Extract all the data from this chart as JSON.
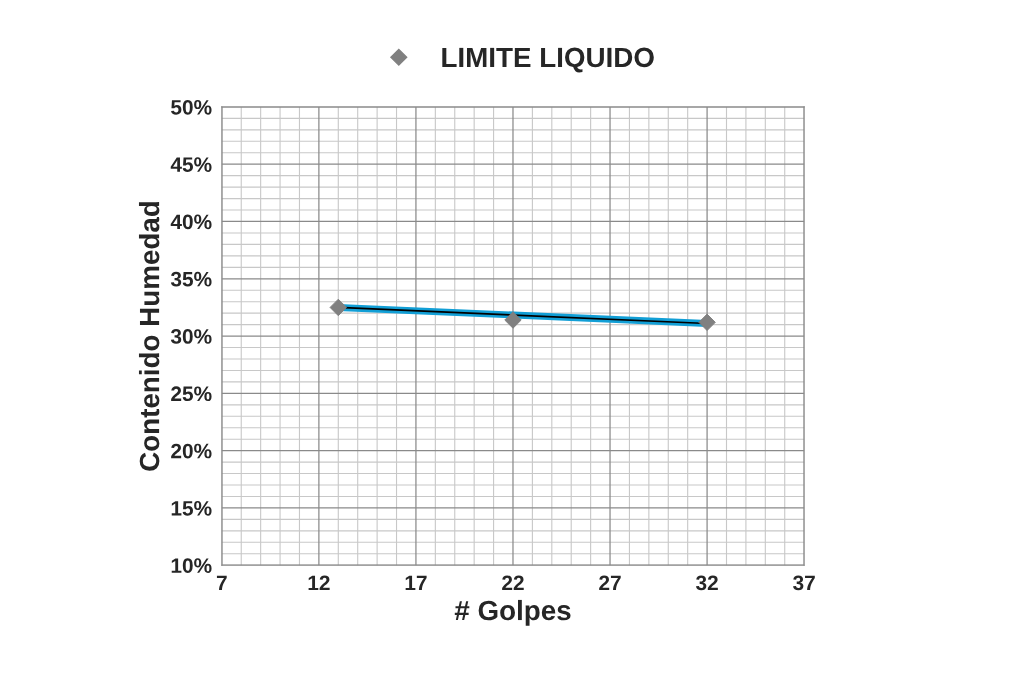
{
  "chart_data": {
    "type": "scatter",
    "xlabel": "# Golpes",
    "ylabel": "Contenido Humedad",
    "xlim": [
      7,
      37
    ],
    "xticks": [
      7,
      12,
      17,
      22,
      27,
      32,
      37
    ],
    "ylim": [
      10,
      50
    ],
    "yticks": [
      {
        "value": 10,
        "label": "10%"
      },
      {
        "value": 15,
        "label": "15%"
      },
      {
        "value": 20,
        "label": "20%"
      },
      {
        "value": 25,
        "label": "25%"
      },
      {
        "value": 30,
        "label": "30%"
      },
      {
        "value": 35,
        "label": "35%"
      },
      {
        "value": 40,
        "label": "40%"
      },
      {
        "value": 45,
        "label": "45%"
      },
      {
        "value": 50,
        "label": "50%"
      }
    ],
    "grid": true,
    "legend": "top",
    "series": [
      {
        "type": "line",
        "color": "#129fd6",
        "x": [
          13,
          32
        ],
        "values": [
          32.5,
          31.1
        ],
        "marker": "none",
        "line_style": "solid"
      },
      {
        "name": "LIMITE LIQUIDO",
        "color": "#808080",
        "x": [
          13,
          22,
          32
        ],
        "values": [
          32.5,
          31.4,
          31.2
        ],
        "marker": "diamond"
      }
    ]
  }
}
